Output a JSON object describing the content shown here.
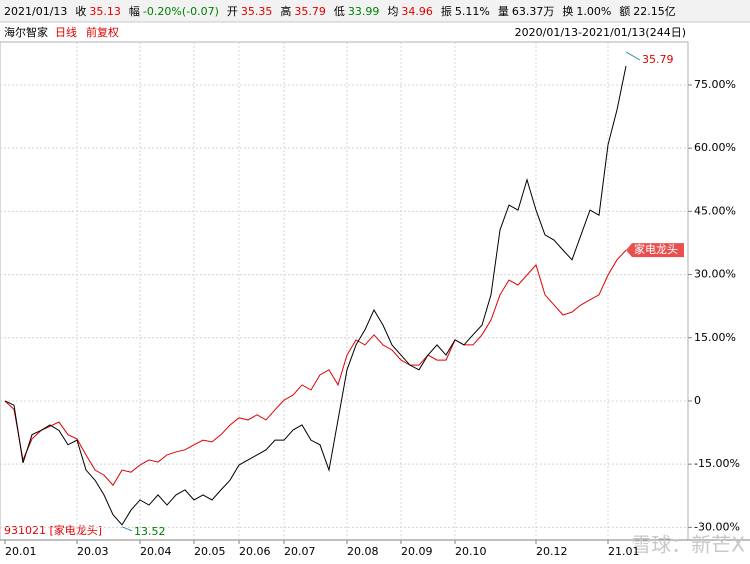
{
  "chart_data": {
    "type": "line",
    "info_date": "2021/01/13",
    "info": [
      {
        "label": "收",
        "value": "35.13",
        "color": "#e00000"
      },
      {
        "label": "幅",
        "value": "-0.20%(-0.07)",
        "color": "#008000"
      },
      {
        "label": "开",
        "value": "35.35",
        "color": "#e00000"
      },
      {
        "label": "高",
        "value": "35.79",
        "color": "#e00000"
      },
      {
        "label": "低",
        "value": "33.99",
        "color": "#008000"
      },
      {
        "label": "均",
        "value": "34.96",
        "color": "#e00000"
      },
      {
        "label": "振",
        "value": "5.11%",
        "color": "#000000"
      },
      {
        "label": "量",
        "value": "63.37万",
        "color": "#000000"
      },
      {
        "label": "换",
        "value": "1.00%",
        "color": "#000000"
      },
      {
        "label": "额",
        "value": "22.15亿",
        "color": "#000000"
      }
    ],
    "stock_name": "海尔智家",
    "period": "日线",
    "adjust": "前复权",
    "range_label": "2020/01/13-2021/01/13(244日)",
    "categories": [
      "20.01",
      null,
      null,
      null,
      null,
      null,
      null,
      null,
      "20.03",
      null,
      null,
      null,
      null,
      null,
      null,
      "20.04",
      null,
      null,
      null,
      null,
      null,
      "20.05",
      null,
      null,
      null,
      null,
      "20.06",
      null,
      null,
      null,
      null,
      "20.07",
      null,
      null,
      null,
      null,
      null,
      null,
      "20.08",
      null,
      null,
      null,
      null,
      null,
      "20.09",
      null,
      null,
      null,
      null,
      null,
      "20.10",
      null,
      null,
      null,
      null,
      null,
      null,
      null,
      null,
      "20.12",
      null,
      null,
      null,
      null,
      null,
      null,
      null,
      "21.01",
      null,
      null
    ],
    "series": [
      {
        "name": "海尔智家",
        "color": "#000000",
        "values": [
          0,
          -1,
          -14.7,
          -8,
          -7,
          -5.7,
          -7,
          -10.4,
          -9.3,
          -16.4,
          -18.8,
          -22.3,
          -27,
          -29.4,
          -25.9,
          -23.5,
          -24.7,
          -22.3,
          -24.7,
          -22.3,
          -21.1,
          -23.5,
          -22.3,
          -23.5,
          -21.1,
          -18.8,
          -15.2,
          -14,
          -12.8,
          -11.6,
          -9.3,
          -9.3,
          -6.9,
          -5.7,
          -9.3,
          -10.4,
          -16.4,
          -4.5,
          7.4,
          13.3,
          16.9,
          21.6,
          18,
          13.3,
          10.9,
          8.5,
          7.4,
          10.9,
          13.3,
          10.9,
          14.5,
          13.3,
          15.7,
          18,
          25.2,
          40.6,
          46.5,
          45.3,
          52.5,
          45.3,
          39.4,
          38.2,
          35.8,
          33.5,
          39.4,
          45.3,
          44.1,
          60.8,
          69.1,
          79.5
        ]
      },
      {
        "name": "家电龙头",
        "color": "#e00000",
        "values": [
          0,
          -2,
          -14,
          -9,
          -7,
          -6,
          -5,
          -8,
          -9,
          -12.8,
          -16.4,
          -17.6,
          -20,
          -16.4,
          -16.9,
          -15.2,
          -14,
          -14.5,
          -12.8,
          -12.1,
          -11.6,
          -10.4,
          -9.3,
          -9.7,
          -8,
          -5.7,
          -4,
          -4.5,
          -3.3,
          -4.5,
          -2.1,
          0.2,
          1.4,
          3.8,
          2.6,
          6.2,
          7.4,
          3.8,
          10.9,
          14.5,
          13.3,
          15.7,
          13.3,
          12.1,
          9.7,
          8.5,
          8.5,
          10.9,
          9.7,
          9.7,
          14.5,
          13.3,
          13.3,
          15.7,
          19.2,
          25.2,
          28.7,
          27.5,
          29.9,
          32.3,
          25.2,
          22.8,
          20.4,
          21.1,
          22.8,
          24,
          25.2,
          29.9,
          33.5,
          35.8
        ]
      }
    ],
    "ylim": [
      -33,
      85.2
    ],
    "yticks": [
      {
        "value": 75,
        "label": "75.00%"
      },
      {
        "value": 60,
        "label": "60.00%"
      },
      {
        "value": 45,
        "label": "45.00%"
      },
      {
        "value": 30,
        "label": "30.00%"
      },
      {
        "value": 15,
        "label": "15.00%"
      },
      0,
      {
        "value": -15,
        "label": "-15.00%"
      },
      {
        "value": -30,
        "label": "-30.00%"
      }
    ],
    "grid": true,
    "high_label": "35.79",
    "low_label": "13.52",
    "index_label": "931021 [家电龙头]",
    "watermark": "雪球：新芒X"
  }
}
